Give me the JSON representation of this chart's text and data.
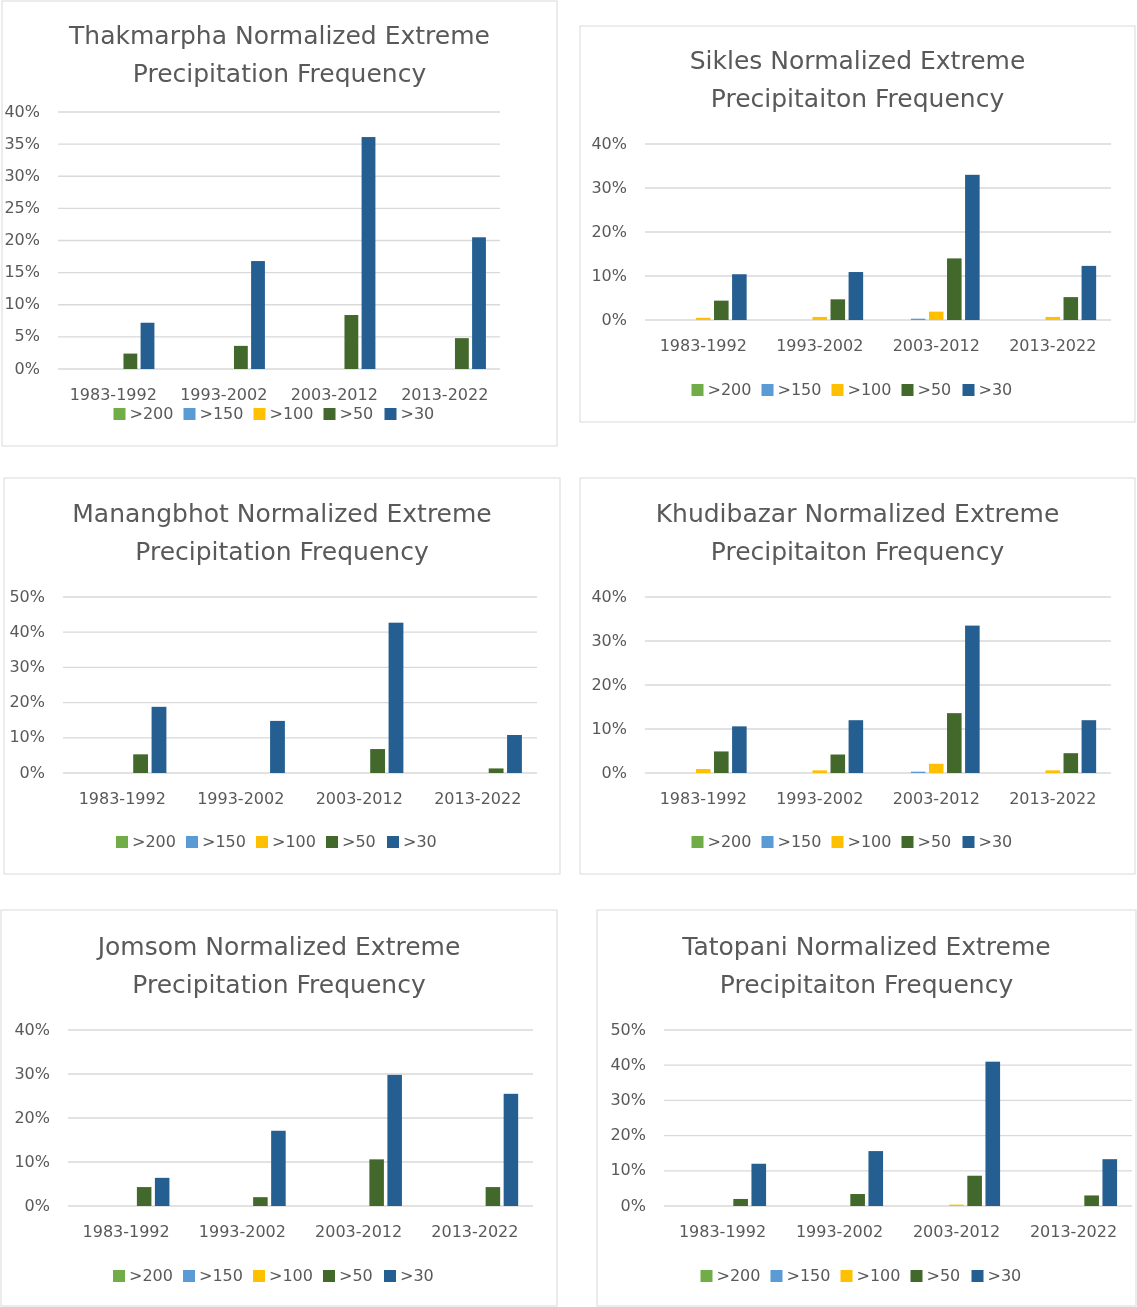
{
  "chart_data": [
    {
      "type": "bar",
      "title": "Thakmarpha Normalized Extreme Precipitation Frequency",
      "categories": [
        "1983-1992",
        "1993-2002",
        "2003-2012",
        "2013-2022"
      ],
      "series": [
        {
          "name": ">200",
          "color": "#70ad47",
          "values": [
            0,
            0,
            0,
            0
          ]
        },
        {
          "name": ">150",
          "color": "#5b9bd5",
          "values": [
            0,
            0,
            0,
            0
          ]
        },
        {
          "name": ">100",
          "color": "#ffc000",
          "values": [
            0,
            0,
            0,
            0
          ]
        },
        {
          "name": ">50",
          "color": "#43682b",
          "values": [
            2.4,
            3.6,
            8.4,
            4.8
          ]
        },
        {
          "name": ">30",
          "color": "#255e91",
          "values": [
            7.2,
            16.8,
            36.1,
            20.5
          ]
        }
      ],
      "ylim": [
        0,
        40
      ],
      "yticks": [
        {
          "value": 0,
          "label": "0%"
        },
        {
          "value": 5,
          "label": "5%"
        },
        {
          "value": 10,
          "label": "10%"
        },
        {
          "value": 15,
          "label": "15%"
        },
        {
          "value": 20,
          "label": "20%"
        },
        {
          "value": 25,
          "label": "25%"
        },
        {
          "value": 30,
          "label": "30%"
        },
        {
          "value": 35,
          "label": "35%"
        },
        {
          "value": 40,
          "label": "40%"
        }
      ],
      "grid": "y",
      "legend": "bottom"
    },
    {
      "type": "bar",
      "title": "Sikles Normalized Extreme Precipitaiton Frequency",
      "categories": [
        "1983-1992",
        "1993-2002",
        "2003-2012",
        "2013-2022"
      ],
      "series": [
        {
          "name": ">200",
          "color": "#70ad47",
          "values": [
            0,
            0,
            0,
            0
          ]
        },
        {
          "name": ">150",
          "color": "#5b9bd5",
          "values": [
            0,
            0,
            0.3,
            0
          ]
        },
        {
          "name": ">100",
          "color": "#ffc000",
          "values": [
            0.5,
            0.7,
            1.9,
            0.7
          ]
        },
        {
          "name": ">50",
          "color": "#43682b",
          "values": [
            4.4,
            4.7,
            14,
            5.2
          ]
        },
        {
          "name": ">30",
          "color": "#255e91",
          "values": [
            10.4,
            10.9,
            33,
            12.3
          ]
        }
      ],
      "ylim": [
        0,
        40
      ],
      "yticks": [
        {
          "value": 0,
          "label": "0%"
        },
        {
          "value": 10,
          "label": "10%"
        },
        {
          "value": 20,
          "label": "20%"
        },
        {
          "value": 30,
          "label": "30%"
        },
        {
          "value": 40,
          "label": "40%"
        }
      ],
      "grid": "y",
      "legend": "bottom"
    },
    {
      "type": "bar",
      "title": "Manangbhot Normalized Extreme Precipitation Frequency",
      "categories": [
        "1983-1992",
        "1993-2002",
        "2003-2012",
        "2013-2022"
      ],
      "series": [
        {
          "name": ">200",
          "color": "#70ad47",
          "values": [
            0,
            0,
            0,
            0
          ]
        },
        {
          "name": ">150",
          "color": "#5b9bd5",
          "values": [
            0,
            0,
            0,
            0
          ]
        },
        {
          "name": ">100",
          "color": "#ffc000",
          "values": [
            0,
            0,
            0,
            0
          ]
        },
        {
          "name": ">50",
          "color": "#43682b",
          "values": [
            5.3,
            0,
            6.8,
            1.3
          ]
        },
        {
          "name": ">30",
          "color": "#255e91",
          "values": [
            18.8,
            14.8,
            42.7,
            10.8
          ]
        }
      ],
      "ylim": [
        0,
        50
      ],
      "yticks": [
        {
          "value": 0,
          "label": "0%"
        },
        {
          "value": 10,
          "label": "10%"
        },
        {
          "value": 20,
          "label": "20%"
        },
        {
          "value": 30,
          "label": "30%"
        },
        {
          "value": 40,
          "label": "40%"
        },
        {
          "value": 50,
          "label": "50%"
        }
      ],
      "grid": "y",
      "legend": "bottom"
    },
    {
      "type": "bar",
      "title": "Khudibazar Normalized Extreme Precipitaiton Frequency",
      "categories": [
        "1983-1992",
        "1993-2002",
        "2003-2012",
        "2013-2022"
      ],
      "series": [
        {
          "name": ">200",
          "color": "#70ad47",
          "values": [
            0,
            0,
            0,
            0
          ]
        },
        {
          "name": ">150",
          "color": "#5b9bd5",
          "values": [
            0,
            0,
            0.3,
            0
          ]
        },
        {
          "name": ">100",
          "color": "#ffc000",
          "values": [
            0.9,
            0.6,
            2.1,
            0.6
          ]
        },
        {
          "name": ">50",
          "color": "#43682b",
          "values": [
            4.9,
            4.2,
            13.6,
            4.5
          ]
        },
        {
          "name": ">30",
          "color": "#255e91",
          "values": [
            10.6,
            12,
            33.5,
            12
          ]
        }
      ],
      "ylim": [
        0,
        40
      ],
      "yticks": [
        {
          "value": 0,
          "label": "0%"
        },
        {
          "value": 10,
          "label": "10%"
        },
        {
          "value": 20,
          "label": "20%"
        },
        {
          "value": 30,
          "label": "30%"
        },
        {
          "value": 40,
          "label": "40%"
        }
      ],
      "grid": "y",
      "legend": "bottom"
    },
    {
      "type": "bar",
      "title": "Jomsom Normalized Extreme Precipitation Frequency",
      "categories": [
        "1983-1992",
        "1993-2002",
        "2003-2012",
        "2013-2022"
      ],
      "series": [
        {
          "name": ">200",
          "color": "#70ad47",
          "values": [
            0,
            0,
            0,
            0
          ]
        },
        {
          "name": ">150",
          "color": "#5b9bd5",
          "values": [
            0,
            0,
            0,
            0
          ]
        },
        {
          "name": ">100",
          "color": "#ffc000",
          "values": [
            0,
            0,
            0,
            0
          ]
        },
        {
          "name": ">50",
          "color": "#43682b",
          "values": [
            4.3,
            2,
            10.6,
            4.3
          ]
        },
        {
          "name": ">30",
          "color": "#255e91",
          "values": [
            6.4,
            17.1,
            29.8,
            25.5
          ]
        }
      ],
      "ylim": [
        0,
        40
      ],
      "yticks": [
        {
          "value": 0,
          "label": "0%"
        },
        {
          "value": 10,
          "label": "10%"
        },
        {
          "value": 20,
          "label": "20%"
        },
        {
          "value": 30,
          "label": "30%"
        },
        {
          "value": 40,
          "label": "40%"
        }
      ],
      "grid": "y",
      "legend": "bottom"
    },
    {
      "type": "bar",
      "title": "Tatopani Normalized Extreme Precipitaiton Frequency",
      "categories": [
        "1983-1992",
        "1993-2002",
        "2003-2012",
        "2013-2022"
      ],
      "series": [
        {
          "name": ">200",
          "color": "#70ad47",
          "values": [
            0,
            0,
            0,
            0
          ]
        },
        {
          "name": ">150",
          "color": "#5b9bd5",
          "values": [
            0,
            0,
            0,
            0
          ]
        },
        {
          "name": ">100",
          "color": "#ffc000",
          "values": [
            0,
            0,
            0.4,
            0
          ]
        },
        {
          "name": ">50",
          "color": "#43682b",
          "values": [
            2,
            3.4,
            8.6,
            3
          ]
        },
        {
          "name": ">30",
          "color": "#255e91",
          "values": [
            12,
            15.6,
            41,
            13.3
          ]
        }
      ],
      "ylim": [
        0,
        50
      ],
      "yticks": [
        {
          "value": 0,
          "label": "0%"
        },
        {
          "value": 10,
          "label": "10%"
        },
        {
          "value": 20,
          "label": "20%"
        },
        {
          "value": 30,
          "label": "30%"
        },
        {
          "value": 40,
          "label": "40%"
        },
        {
          "value": 50,
          "label": "50%"
        }
      ],
      "grid": "y",
      "legend": "bottom"
    }
  ]
}
